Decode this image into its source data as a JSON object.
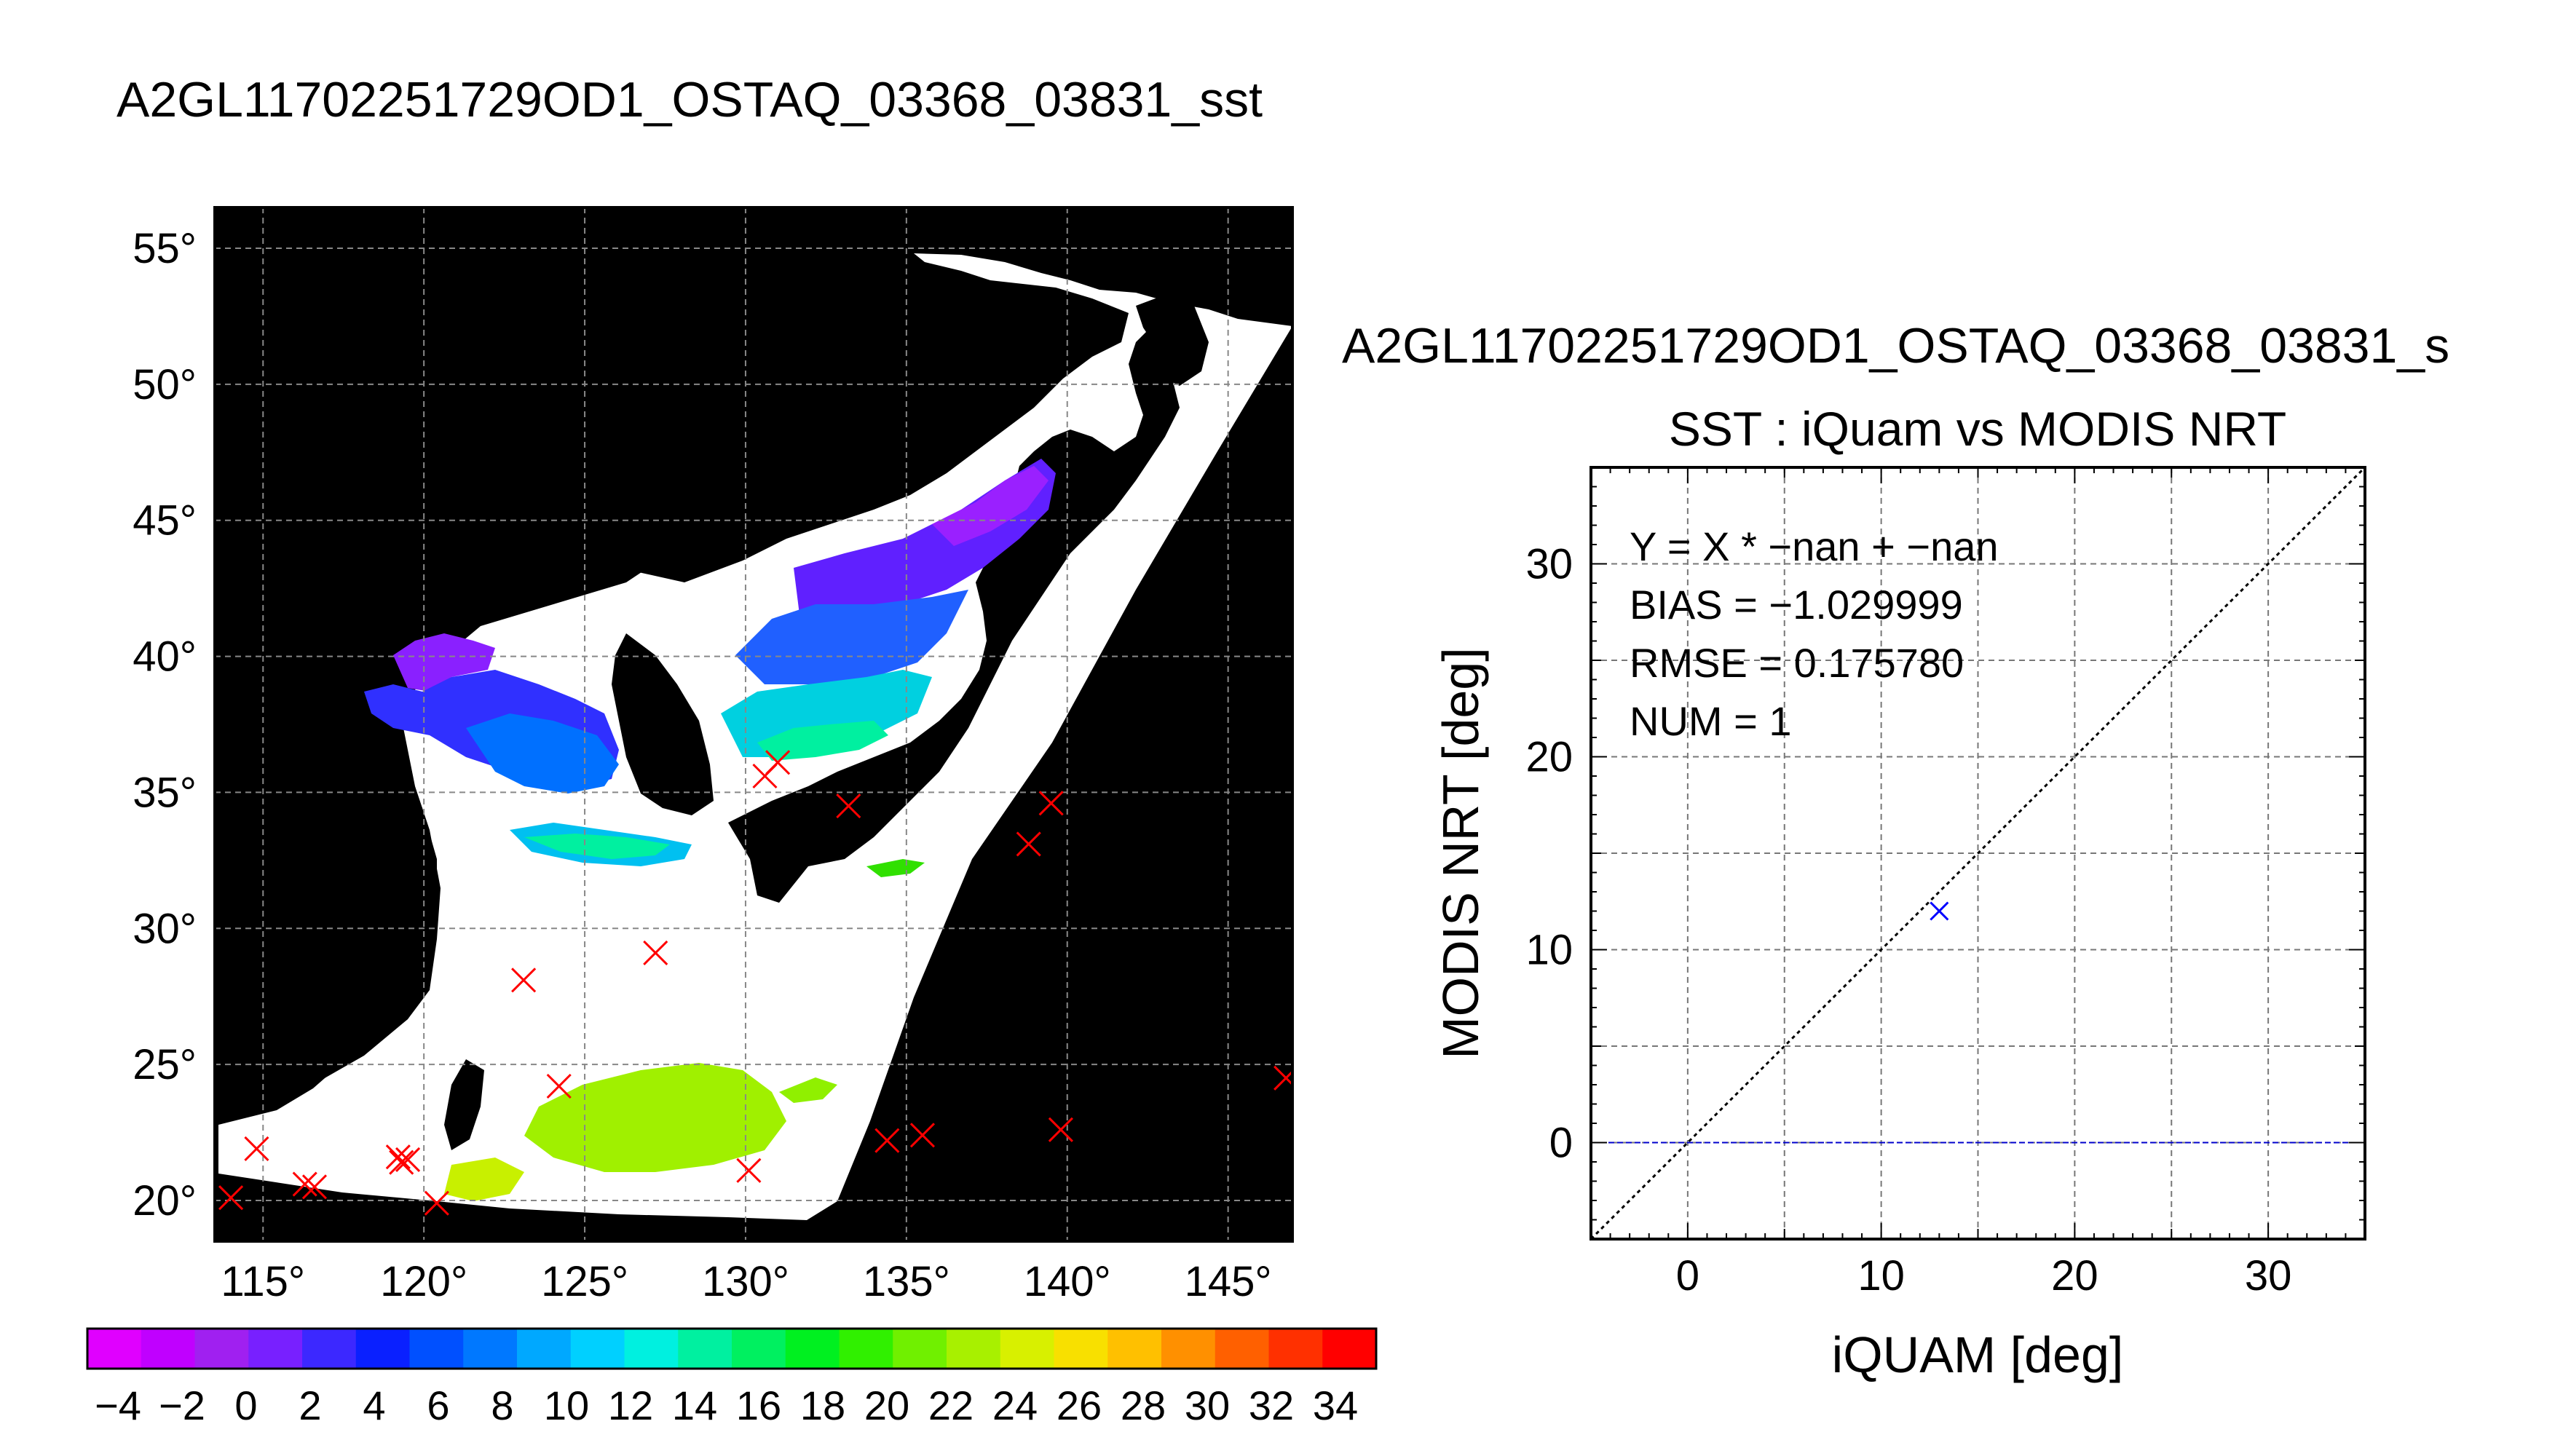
{
  "map": {
    "title": "A2GL11702251729OD1_OSTAQ_03368_03831_sst",
    "lon_ticks": [
      "115°",
      "120°",
      "125°",
      "130°",
      "135°",
      "140°",
      "145°"
    ],
    "lat_ticks": [
      "55°",
      "50°",
      "45°",
      "40°",
      "35°",
      "30°",
      "25°",
      "20°"
    ],
    "lon_range": [
      113.5,
      147
    ],
    "lat_range": [
      18.5,
      56.5
    ],
    "grid": true,
    "background_color": "#000000",
    "cloud_color": "#ffffff",
    "marker_color": "#ff0000",
    "in_situ_points": [
      [
        114.0,
        20.1
      ],
      [
        114.8,
        21.9
      ],
      [
        116.3,
        20.6
      ],
      [
        116.6,
        20.5
      ],
      [
        119.2,
        21.6
      ],
      [
        119.3,
        21.4
      ],
      [
        119.5,
        21.5
      ],
      [
        120.4,
        19.9
      ],
      [
        123.1,
        28.1
      ],
      [
        124.2,
        24.2
      ],
      [
        127.2,
        29.1
      ],
      [
        130.1,
        21.1
      ],
      [
        130.6,
        35.6
      ],
      [
        131.0,
        36.1
      ],
      [
        133.2,
        34.5
      ],
      [
        134.4,
        22.2
      ],
      [
        135.5,
        22.4
      ],
      [
        138.8,
        33.1
      ],
      [
        139.5,
        34.6
      ],
      [
        139.8,
        22.6
      ],
      [
        146.8,
        24.5
      ]
    ],
    "colorbar": {
      "ticks": [
        "−4",
        "−2",
        "0",
        "2",
        "4",
        "6",
        "8",
        "10",
        "12",
        "14",
        "16",
        "18",
        "20",
        "22",
        "24",
        "26",
        "28",
        "30",
        "32",
        "34"
      ],
      "range": [
        -5,
        35
      ],
      "colors": [
        "#e000ff",
        "#c000ff",
        "#a020f0",
        "#7820ff",
        "#3c28ff",
        "#0a20ff",
        "#0050ff",
        "#0078ff",
        "#00a8ff",
        "#00d0ff",
        "#00f0e0",
        "#00f0a0",
        "#00f060",
        "#00f020",
        "#30f000",
        "#70f000",
        "#a8f000",
        "#d8f000",
        "#f8e000",
        "#ffc000",
        "#ff9000",
        "#ff6000",
        "#ff3000",
        "#ff0000"
      ]
    }
  },
  "scatter": {
    "header": "A2GL11702251729OD1_OSTAQ_03368_03831_s",
    "title": "SST : iQuam vs MODIS NRT",
    "xlabel": "iQUAM [deg]",
    "ylabel": "MODIS NRT [deg]",
    "stats": [
      "Y = X * −nan + −nan",
      "BIAS = −1.029999",
      "RMSE = 0.175780",
      "NUM = 1"
    ],
    "x_ticks": [
      "0",
      "10",
      "20",
      "30"
    ],
    "y_ticks": [
      "0",
      "10",
      "20",
      "30"
    ],
    "point_color": "#0000ff",
    "zero_line_color": "#0000cc"
  },
  "chart_data": [
    {
      "type": "scatter",
      "title": "SST : iQuam vs MODIS NRT",
      "xlabel": "iQUAM [deg]",
      "ylabel": "MODIS NRT [deg]",
      "xlim": [
        -5,
        35
      ],
      "ylim": [
        -5,
        35
      ],
      "grid": true,
      "x": [
        13.0
      ],
      "y": [
        12.0
      ],
      "reference_lines": [
        "y = x",
        "y = 0"
      ]
    }
  ]
}
